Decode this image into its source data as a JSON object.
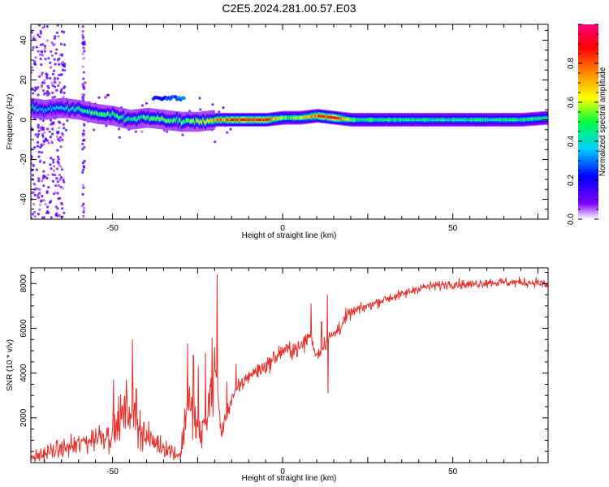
{
  "title": "C2E5.2024.281.00.57.E03",
  "chart_data": [
    {
      "type": "heatmap",
      "xlabel": "Height of straight line (km)",
      "ylabel": "Frequency (Hz)",
      "xlim": [
        -74,
        78
      ],
      "ylim": [
        -50,
        48
      ],
      "xticks": [
        -50,
        0,
        50
      ],
      "yticks": [
        -40,
        -20,
        0,
        20,
        40
      ],
      "colorbar": {
        "label": "Normalized spectral amplitude",
        "range": [
          0,
          1
        ],
        "ticks": [
          0.0,
          0.2,
          0.4,
          0.6,
          0.8
        ],
        "tick_labels": [
          "0.0",
          "0.2",
          "0.4",
          "0.6",
          "0.8"
        ],
        "colormap": "rainbow (white → violet → blue → cyan → green → yellow → orange → red → magenta)"
      },
      "ridge": {
        "x": [
          -74,
          -70,
          -65,
          -60,
          -55,
          -50,
          -45,
          -40,
          -35,
          -30,
          -25,
          -20,
          -15,
          -10,
          -5,
          0,
          5,
          10,
          15,
          20,
          30,
          40,
          50,
          60,
          70,
          78
        ],
        "center_hz": [
          6,
          5,
          6,
          5,
          3,
          2,
          0,
          1,
          0,
          -1,
          -1,
          0,
          0,
          0,
          0,
          1,
          1,
          2,
          1,
          0,
          0,
          0,
          0,
          0,
          0,
          1
        ],
        "peak_amplitude": [
          0.4,
          0.35,
          0.4,
          0.45,
          0.5,
          0.5,
          0.45,
          0.5,
          0.55,
          0.5,
          0.6,
          0.75,
          0.8,
          0.85,
          0.85,
          0.55,
          0.6,
          0.8,
          0.9,
          0.5,
          0.45,
          0.45,
          0.45,
          0.45,
          0.45,
          0.45
        ]
      },
      "secondary_feature": {
        "x_range": [
          -38,
          -29
        ],
        "center_hz": 11,
        "peak_amplitude": 0.3
      }
    },
    {
      "type": "line",
      "xlabel": "Height of straight line (km)",
      "ylabel": "SNR (10 * v/v)",
      "xlim": [
        -74,
        78
      ],
      "ylim": [
        0,
        8700
      ],
      "xticks": [
        -50,
        0,
        50
      ],
      "yticks": [
        2000,
        4000,
        6000,
        8000
      ],
      "color": "#e8302a",
      "envelope": {
        "x": [
          -74,
          -68,
          -60,
          -54,
          -50,
          -46,
          -44,
          -42,
          -40,
          -35,
          -30,
          -28,
          -26,
          -24,
          -22,
          -20,
          -18,
          -15,
          -12,
          -10,
          -5,
          0,
          5,
          8,
          10,
          13,
          15,
          18,
          20,
          25,
          30,
          35,
          40,
          45,
          50,
          55,
          60,
          65,
          70,
          75,
          78
        ],
        "y": [
          200,
          500,
          800,
          1200,
          1300,
          2400,
          2300,
          1600,
          1100,
          700,
          300,
          2800,
          1800,
          1200,
          2300,
          4500,
          1300,
          2900,
          3500,
          3900,
          4300,
          5000,
          5100,
          5700,
          4800,
          5500,
          5700,
          6300,
          6700,
          7000,
          7300,
          7500,
          7800,
          7900,
          8000,
          7950,
          8050,
          8050,
          8050,
          8050,
          7900
        ]
      },
      "spikes": [
        {
          "x": -49.7,
          "y": 3700
        },
        {
          "x": -44.1,
          "y": 5500
        },
        {
          "x": -43,
          "y": 3300
        },
        {
          "x": -27.9,
          "y": 5300
        },
        {
          "x": -26.2,
          "y": 4800
        },
        {
          "x": -24.8,
          "y": 4300
        },
        {
          "x": -22.7,
          "y": 4900
        },
        {
          "x": -19.3,
          "y": 8400
        },
        {
          "x": -16.4,
          "y": 3600
        },
        {
          "x": -13.7,
          "y": 4400
        },
        {
          "x": 8.3,
          "y": 7100
        },
        {
          "x": 11.4,
          "y": 6300
        },
        {
          "x": 13.2,
          "y": 7500
        },
        {
          "x": 16.6,
          "y": 6300
        }
      ],
      "dips": [
        {
          "x": 13.3,
          "y": 3100
        }
      ]
    }
  ]
}
